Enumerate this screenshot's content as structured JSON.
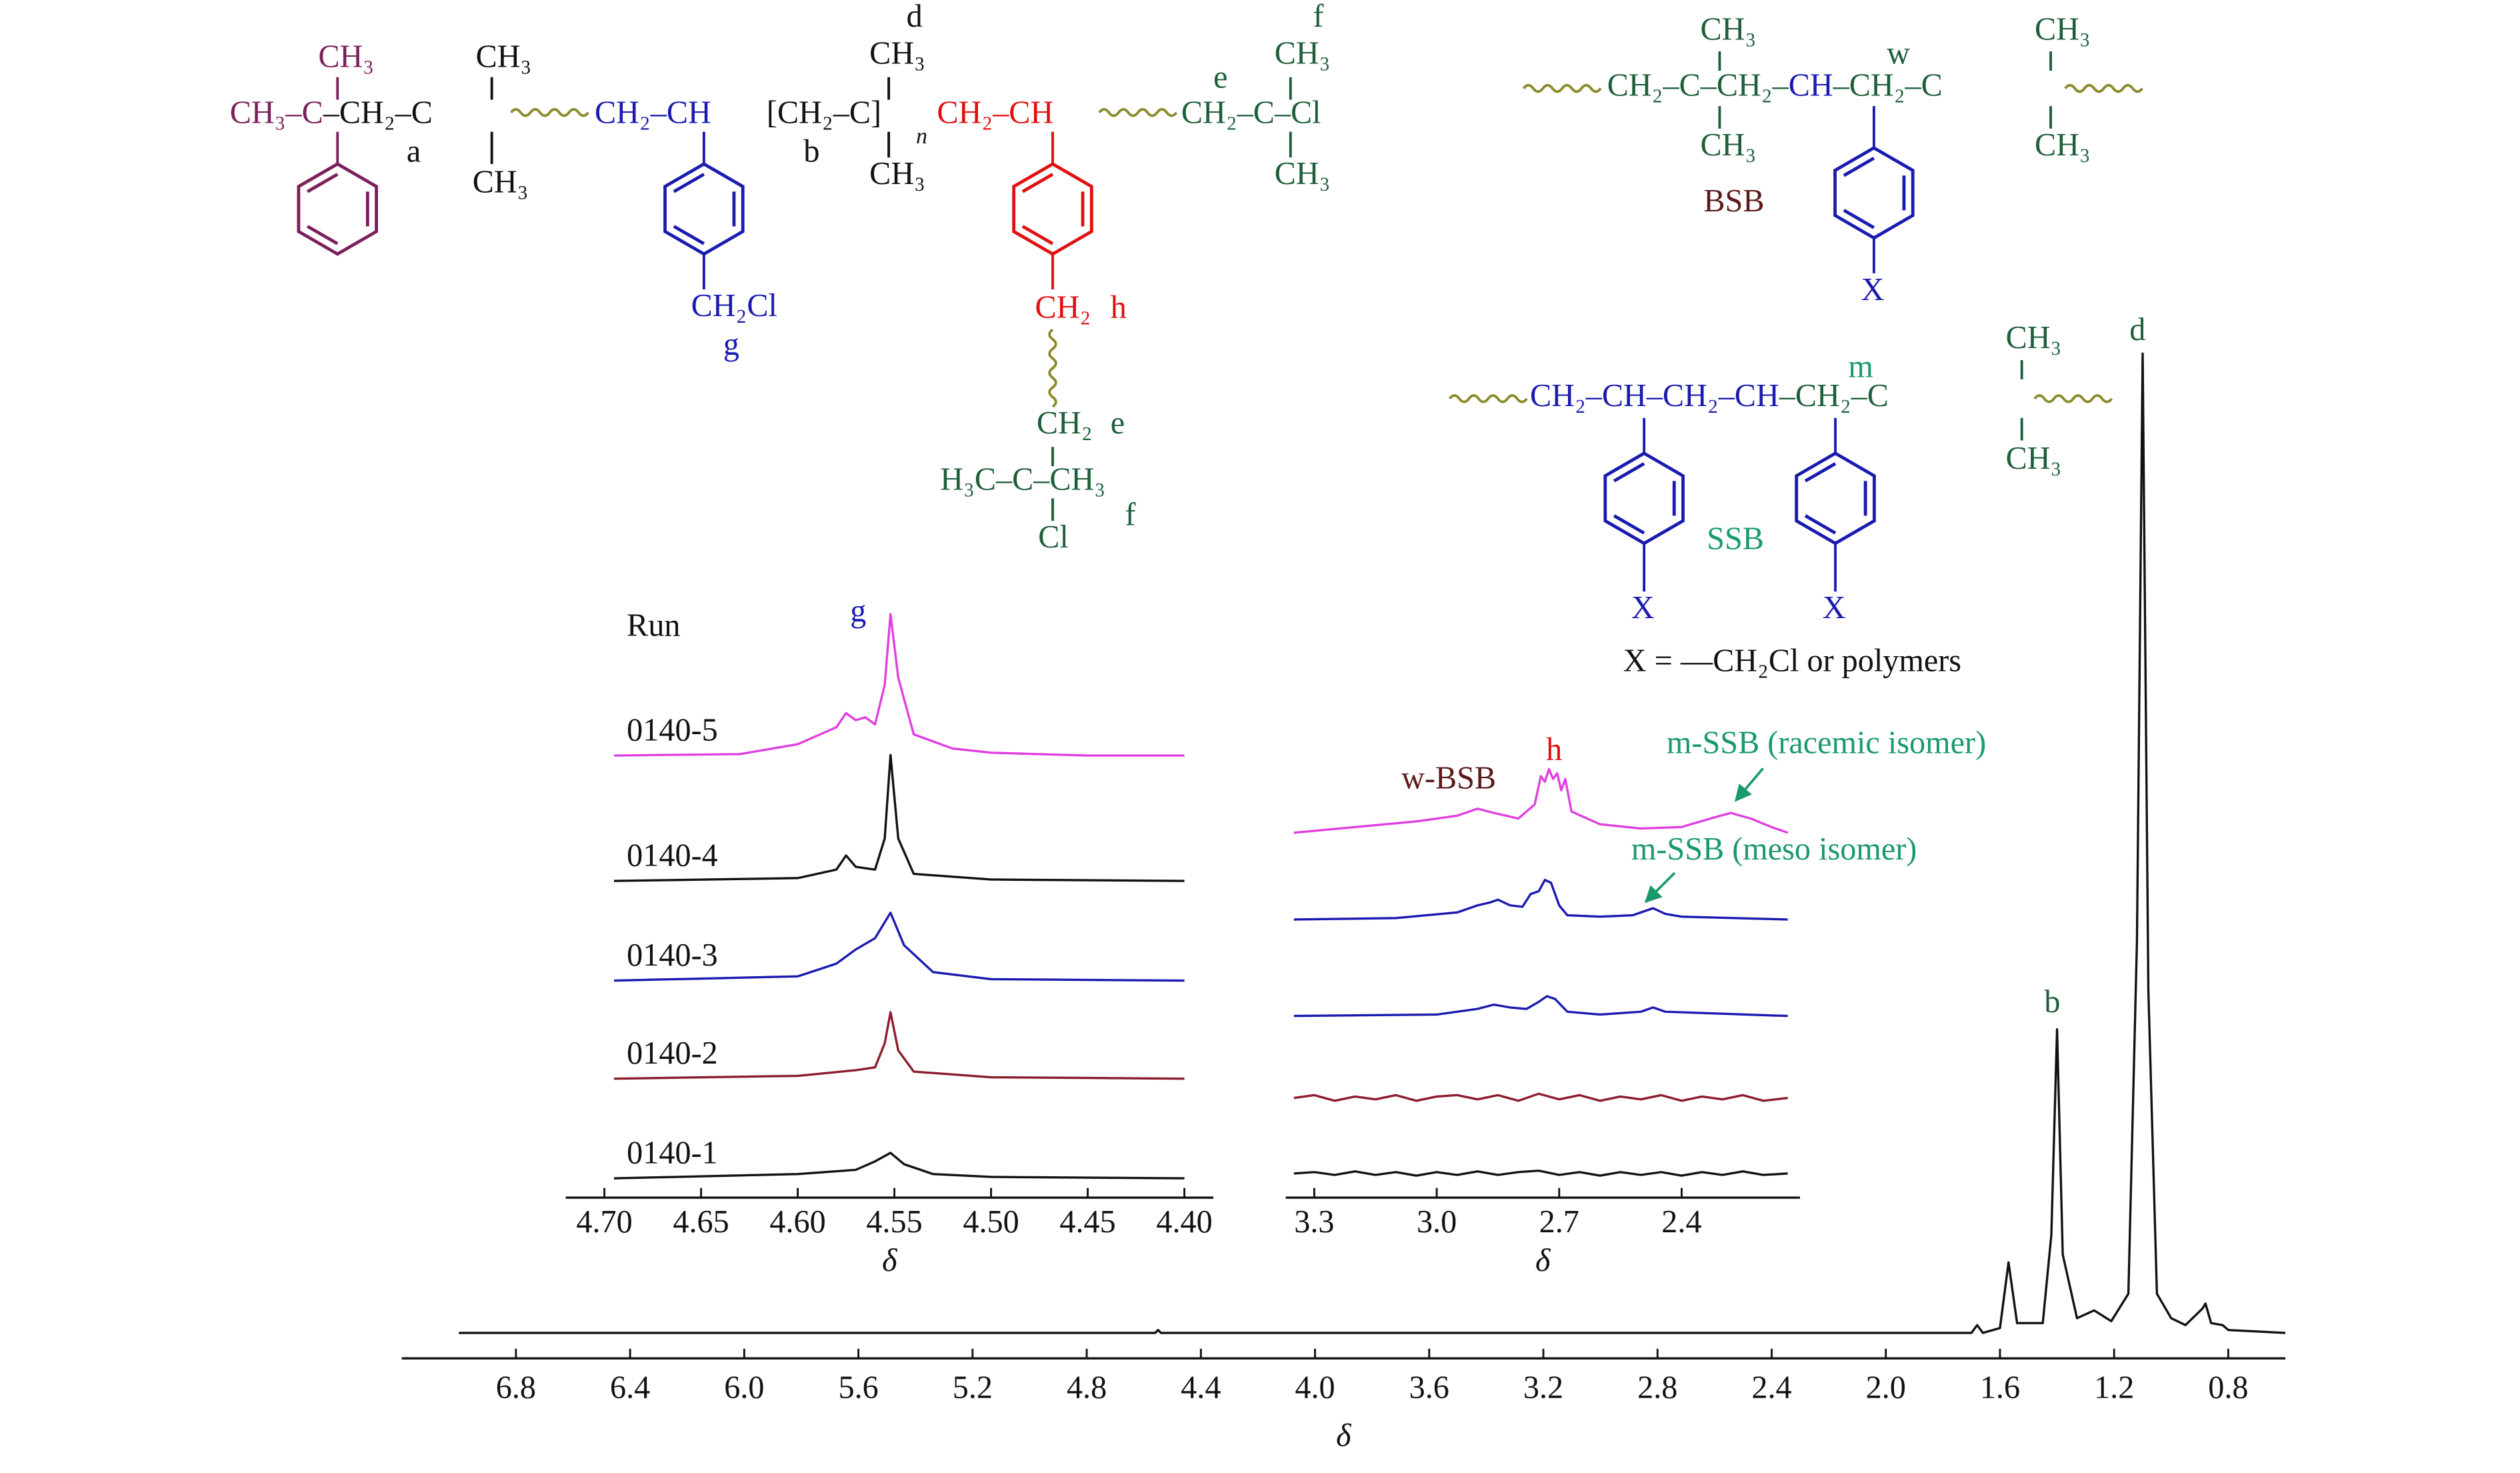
{
  "structures": {
    "labels": [
      "CH₃",
      "CH₃–C",
      "–CH₂–C",
      "CH₂–CH",
      "[CH₂–C]",
      "n",
      "CH₂–CH",
      "CH₂–C–Cl",
      "CH₃",
      "d",
      "CH₃",
      "f",
      "CH₃",
      "a",
      "CH₃",
      "b",
      "CH₃",
      "CH₃",
      "e",
      "CH₂Cl",
      "g",
      "CH₂",
      "h",
      "CH₂",
      "e",
      "H₃C–C–CH₃",
      "f",
      "Cl",
      "CH₂–C–CH₂–",
      "CH",
      "–CH₂–C",
      "w",
      "CH₃",
      "CH₃",
      "CH₃",
      "CH₃",
      "BSB",
      "X",
      "CH₂–CH–CH₂–CH",
      "–CH₂–C",
      "m",
      "CH₃",
      "CH₃",
      "SSB",
      "X",
      "X",
      "X = —CH₂Cl or polymers"
    ]
  },
  "chart_data": [
    {
      "type": "line",
      "xlabel": "δ",
      "xlim": [
        7.2,
        0.6
      ],
      "ylim": [
        -2.6,
        100
      ],
      "xticks": [
        6.8,
        6.4,
        {
          "value": 6,
          "label": "6.0"
        },
        5.6,
        5.2,
        4.8,
        4.4,
        {
          "value": 4,
          "label": "4.0"
        },
        3.6,
        3.2,
        2.8,
        2.4,
        {
          "value": 2,
          "label": "2.0"
        },
        1.6,
        1.2,
        0.8
      ],
      "annotations": [
        "d",
        "b"
      ],
      "series": [
        {
          "color": "#111111",
          "x": [
            7.0,
            4.56,
            4.55,
            4.54,
            1.7,
            1.68,
            1.66,
            1.6,
            1.57,
            1.54,
            1.45,
            1.42,
            1.4,
            1.38,
            1.33,
            1.27,
            1.21,
            1.15,
            1.12,
            1.1,
            1.08,
            1.05,
            1.0,
            0.95,
            0.89,
            0.88,
            0.86,
            0.82,
            0.8,
            0.6
          ],
          "values": [
            0,
            0,
            0.3,
            0,
            0,
            0.8,
            0,
            0.5,
            7.2,
            1,
            1,
            10,
            31,
            8,
            1.5,
            2.3,
            1.2,
            4,
            40,
            100,
            35,
            4,
            1.5,
            0.8,
            2.5,
            3,
            1,
            0.8,
            0.3,
            0
          ]
        }
      ]
    },
    {
      "type": "line",
      "xlabel": "δ",
      "xlim": [
        4.72,
        4.385
      ],
      "ylim": [
        0,
        100
      ],
      "xticks": [
        {
          "value": 4.7,
          "label": "4.70"
        },
        4.65,
        {
          "value": 4.6,
          "label": "4.60"
        },
        4.55,
        {
          "value": 4.5,
          "label": "4.50"
        },
        4.45,
        {
          "value": 4.4,
          "label": "4.40"
        }
      ],
      "annotations": [
        "Run",
        "g"
      ],
      "series": [
        {
          "name": "0140-5",
          "color": "#e040e0",
          "x": [
            4.695,
            4.63,
            4.6,
            4.58,
            4.575,
            4.57,
            4.565,
            4.56,
            4.555,
            4.552,
            4.548,
            4.54,
            4.52,
            4.5,
            4.45,
            4.4
          ],
          "values": [
            0,
            1,
            8,
            20,
            30,
            25,
            27,
            22,
            50,
            100,
            55,
            15,
            5,
            2,
            0,
            0
          ]
        },
        {
          "name": "0140-4",
          "color": "#111111",
          "x": [
            4.695,
            4.6,
            4.58,
            4.575,
            4.57,
            4.56,
            4.555,
            4.552,
            4.548,
            4.54,
            4.5,
            4.4
          ],
          "values": [
            0,
            2,
            8,
            18,
            10,
            8,
            30,
            89,
            30,
            5,
            1,
            0
          ]
        },
        {
          "name": "0140-3",
          "color": "#1a1ab0",
          "x": [
            4.695,
            4.6,
            4.58,
            4.57,
            4.56,
            4.552,
            4.545,
            4.53,
            4.5,
            4.4
          ],
          "values": [
            0,
            3,
            12,
            22,
            30,
            48,
            25,
            6,
            1,
            0
          ]
        },
        {
          "name": "0140-2",
          "color": "#8b1c2c",
          "x": [
            4.695,
            4.6,
            4.57,
            4.56,
            4.555,
            4.552,
            4.548,
            4.54,
            4.5,
            4.4
          ],
          "values": [
            0,
            2,
            6,
            8,
            25,
            47,
            20,
            5,
            1,
            0
          ]
        },
        {
          "name": "0140-1",
          "color": "#111111",
          "x": [
            4.695,
            4.6,
            4.57,
            4.56,
            4.552,
            4.545,
            4.53,
            4.5,
            4.4
          ],
          "values": [
            0,
            3,
            6,
            12,
            18,
            10,
            3,
            1,
            0
          ]
        }
      ]
    },
    {
      "type": "line",
      "xlabel": "δ",
      "xlim": [
        3.37,
        2.11
      ],
      "ylim": [
        0,
        100
      ],
      "xticks": [
        3.3,
        {
          "value": 3,
          "label": "3.0"
        },
        2.7,
        2.4
      ],
      "annotations": [
        "w-BSB",
        "h",
        "m-SSB (racemic isomer)",
        "m-SSB (meso isomer)"
      ],
      "series": [
        {
          "color": "#e040e0",
          "x": [
            3.35,
            3.2,
            3.05,
            2.95,
            2.9,
            2.86,
            2.8,
            2.76,
            2.745,
            2.735,
            2.725,
            2.715,
            2.705,
            2.695,
            2.685,
            2.67,
            2.6,
            2.5,
            2.4,
            2.33,
            2.28,
            2.23,
            2.18,
            2.14
          ],
          "values": [
            0,
            4,
            8,
            12,
            17,
            14,
            10,
            20,
            40,
            36,
            45,
            38,
            42,
            30,
            38,
            15,
            6,
            3,
            4,
            10,
            14,
            10,
            4,
            0
          ]
        },
        {
          "color": "#1a1ab0",
          "x": [
            3.35,
            3.1,
            2.95,
            2.9,
            2.87,
            2.85,
            2.82,
            2.79,
            2.77,
            2.75,
            2.735,
            2.72,
            2.7,
            2.68,
            2.6,
            2.52,
            2.49,
            2.47,
            2.44,
            2.4,
            2.14
          ],
          "values": [
            0,
            1,
            5,
            10,
            12,
            14,
            10,
            9,
            18,
            20,
            28,
            26,
            10,
            3,
            2,
            3,
            6,
            8,
            4,
            2,
            0
          ]
        },
        {
          "color": "#1a1ab0",
          "x": [
            3.35,
            3.0,
            2.9,
            2.86,
            2.82,
            2.78,
            2.75,
            2.73,
            2.71,
            2.68,
            2.6,
            2.5,
            2.47,
            2.44,
            2.14
          ],
          "values": [
            0,
            1,
            5,
            8,
            6,
            5,
            10,
            14,
            12,
            3,
            1,
            3,
            6,
            3,
            0
          ]
        },
        {
          "color": "#8b1c2c",
          "x": [
            3.35,
            3.3,
            3.25,
            3.2,
            3.15,
            3.1,
            3.05,
            3.0,
            2.95,
            2.9,
            2.85,
            2.8,
            2.75,
            2.7,
            2.65,
            2.6,
            2.55,
            2.5,
            2.45,
            2.4,
            2.35,
            2.3,
            2.25,
            2.2,
            2.14
          ],
          "values": [
            0,
            2,
            -2,
            1,
            -1,
            2,
            -2,
            1,
            2,
            -1,
            2,
            -2,
            3,
            -1,
            2,
            -2,
            1,
            -1,
            2,
            -2,
            1,
            -1,
            2,
            -2,
            0
          ]
        },
        {
          "color": "#111111",
          "x": [
            3.35,
            3.3,
            3.25,
            3.2,
            3.15,
            3.1,
            3.05,
            3.0,
            2.95,
            2.9,
            2.85,
            2.8,
            2.75,
            2.7,
            2.65,
            2.6,
            2.55,
            2.5,
            2.45,
            2.4,
            2.35,
            2.3,
            2.25,
            2.2,
            2.14
          ],
          "values": [
            0,
            1,
            -1,
            1.5,
            -1,
            1,
            -1.5,
            1,
            -1,
            1.5,
            -1,
            1,
            2,
            -1,
            1,
            -1.5,
            1,
            -1,
            1,
            -1.5,
            1,
            -1,
            1.5,
            -1,
            0
          ]
        }
      ]
    }
  ]
}
